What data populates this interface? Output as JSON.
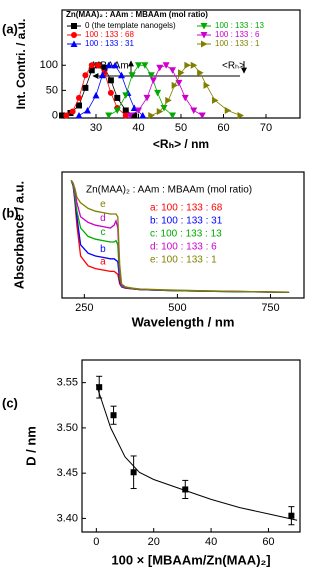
{
  "chart_data": [
    {
      "type": "line",
      "label": "(a)",
      "legend_title": "Zn(MAA)₂ : AAm : MBAAm  (mol ratio)",
      "xlabel": "<Rₕ>  /  nm",
      "ylabel": "Int. Contri.  /  a.u.",
      "annotations": [
        "MBAAm",
        "<Rₕ>"
      ],
      "xlim": [
        22,
        78
      ],
      "xticks": [
        30,
        40,
        50,
        60,
        70
      ],
      "ylim": [
        -5,
        210
      ],
      "yticks": [
        0,
        50,
        100
      ],
      "series": [
        {
          "name": "0 (the template nanogels)",
          "color": "#000000",
          "marker": "square",
          "x": [
            22,
            24,
            26,
            27.5,
            29,
            30.5,
            32,
            33.5,
            35,
            37,
            39
          ],
          "values": [
            0,
            5,
            20,
            55,
            90,
            100,
            95,
            70,
            35,
            10,
            0
          ]
        },
        {
          "name": "100 : 133 : 68",
          "color": "#ff0000",
          "marker": "circle",
          "x": [
            23,
            24.5,
            26,
            27.5,
            29,
            30.5,
            32,
            33.5,
            35,
            37
          ],
          "values": [
            0,
            8,
            35,
            80,
            100,
            100,
            85,
            45,
            15,
            0
          ]
        },
        {
          "name": "100 : 133 : 31",
          "color": "#0000ff",
          "marker": "triangle-up",
          "x": [
            26,
            28,
            30,
            31.5,
            33,
            34.5,
            36,
            37.5,
            39,
            41
          ],
          "values": [
            0,
            10,
            40,
            80,
            100,
            100,
            80,
            45,
            15,
            0
          ]
        },
        {
          "name": "100 : 133 : 13",
          "color": "#00aa00",
          "marker": "triangle-down",
          "x": [
            33,
            35,
            37,
            38.5,
            40,
            41.5,
            43,
            44.5,
            46,
            48
          ],
          "values": [
            0,
            10,
            40,
            80,
            100,
            100,
            80,
            45,
            15,
            0
          ]
        },
        {
          "name": "100 : 133 : 6",
          "color": "#cc00cc",
          "marker": "triangle-down",
          "x": [
            38,
            40,
            42,
            43.5,
            45,
            46.5,
            48,
            49.5,
            51,
            53,
            55
          ],
          "values": [
            0,
            10,
            35,
            70,
            95,
            100,
            90,
            65,
            35,
            10,
            0
          ]
        },
        {
          "name": "100 : 133 : 1",
          "color": "#808000",
          "marker": "triangle-right",
          "x": [
            43,
            45,
            47,
            48.5,
            50,
            51.5,
            53,
            54.5,
            56,
            58,
            61,
            64
          ],
          "values": [
            0,
            8,
            30,
            60,
            85,
            100,
            100,
            85,
            60,
            30,
            10,
            0
          ]
        }
      ]
    },
    {
      "type": "line",
      "label": "(b)",
      "legend_title": "Zn(MAA)₂ : AAm : MBAAm  (mol ratio)",
      "xlabel": "Wavelength  /  nm",
      "ylabel": "Absorbance  /  a.u.",
      "xlim": [
        190,
        840
      ],
      "xticks": [
        250,
        500,
        750
      ],
      "ylim": [
        0,
        4.5
      ],
      "x": [
        215,
        220,
        225,
        230,
        240,
        260,
        280,
        300,
        320,
        330,
        335,
        340,
        345,
        350,
        360,
        380,
        400,
        450,
        500,
        600,
        700,
        800
      ],
      "series": [
        {
          "name": "a: 100 : 133 : 68",
          "tag": "a",
          "color": "#ff0000",
          "values": [
            4.2,
            4.0,
            3.4,
            2.6,
            1.5,
            1.15,
            1.05,
            1.0,
            0.95,
            0.95,
            0.9,
            0.85,
            0.5,
            0.4,
            0.35,
            0.32,
            0.3,
            0.28,
            0.26,
            0.24,
            0.22,
            0.2
          ]
        },
        {
          "name": "b: 100 : 133 : 31",
          "tag": "b",
          "color": "#0000ff",
          "values": [
            4.2,
            4.0,
            3.5,
            2.9,
            1.9,
            1.6,
            1.5,
            1.45,
            1.4,
            1.4,
            1.35,
            1.3,
            0.6,
            0.4,
            0.36,
            0.33,
            0.3,
            0.28,
            0.26,
            0.24,
            0.22,
            0.2
          ]
        },
        {
          "name": "c: 100 : 133 : 13",
          "tag": "c",
          "color": "#00aa00",
          "values": [
            4.2,
            4.05,
            3.6,
            3.1,
            2.5,
            2.2,
            2.1,
            2.05,
            2.0,
            2.0,
            2.05,
            1.9,
            0.7,
            0.42,
            0.37,
            0.33,
            0.3,
            0.28,
            0.26,
            0.24,
            0.22,
            0.2
          ]
        },
        {
          "name": "d: 100 : 133 : 6",
          "tag": "d",
          "color": "#cc00cc",
          "values": [
            4.2,
            4.1,
            3.8,
            3.4,
            2.9,
            2.7,
            2.6,
            2.55,
            2.5,
            2.6,
            2.75,
            2.5,
            0.9,
            0.45,
            0.38,
            0.34,
            0.31,
            0.29,
            0.27,
            0.25,
            0.23,
            0.21
          ]
        },
        {
          "name": "e: 100 : 133 : 1",
          "tag": "e",
          "color": "#808000",
          "values": [
            4.2,
            4.1,
            3.9,
            3.6,
            3.4,
            3.2,
            3.1,
            3.05,
            3.0,
            3.0,
            3.0,
            2.9,
            1.2,
            0.5,
            0.4,
            0.35,
            0.32,
            0.3,
            0.28,
            0.25,
            0.23,
            0.21
          ]
        }
      ]
    },
    {
      "type": "errorbar",
      "label": "(c)",
      "xlabel": "100 × [MBAAm/Zn(MAA)₂]",
      "ylabel": "D  /  nm",
      "color": "#000000",
      "xlim": [
        -5,
        71
      ],
      "xticks": [
        0,
        20,
        40,
        60
      ],
      "ylim": [
        3.385,
        3.575
      ],
      "yticks": [
        {
          "value": 3.4,
          "label": "3.40"
        },
        {
          "value": 3.45,
          "label": "3.45"
        },
        {
          "value": 3.5,
          "label": "3.50"
        },
        {
          "value": 3.55,
          "label": "3.55"
        }
      ],
      "x": [
        1,
        6,
        13,
        31,
        68
      ],
      "values": [
        3.545,
        3.514,
        3.451,
        3.432,
        3.403
      ],
      "errors": [
        0.012,
        0.01,
        0.018,
        0.01,
        0.01
      ],
      "fit_x": [
        0,
        5,
        10,
        15,
        20,
        30,
        40,
        50,
        60,
        70
      ],
      "fit_values": [
        3.548,
        3.5,
        3.468,
        3.451,
        3.443,
        3.432,
        3.421,
        3.412,
        3.405,
        3.398
      ]
    }
  ]
}
